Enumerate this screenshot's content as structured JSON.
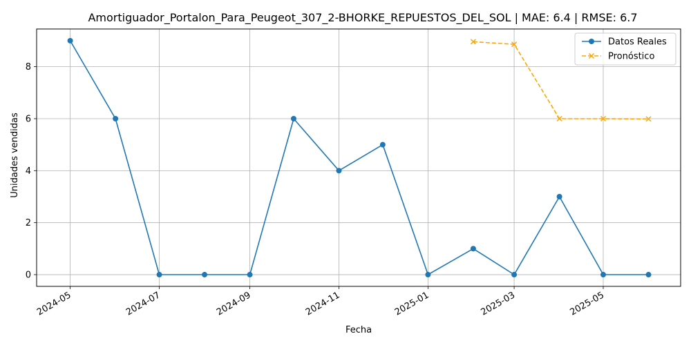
{
  "chart_data": {
    "type": "line",
    "title": "Amortiguador_Portalon_Para_Peugeot_307_2-BHORKE_REPUESTOS_DEL_SOL | MAE: 6.4 | RMSE: 6.7",
    "xlabel": "Fecha",
    "ylabel": "Unidades vendidas",
    "x_ticks": [
      "2024-05",
      "2024-07",
      "2024-09",
      "2024-11",
      "2025-01",
      "2025-03",
      "2025-05"
    ],
    "y_ticks": [
      0,
      2,
      4,
      6,
      8
    ],
    "ylim": [
      -0.45,
      9.45
    ],
    "xlim": [
      "2024-04-08",
      "2025-06-23"
    ],
    "grid": true,
    "legend_position": "top-right",
    "series": [
      {
        "name": "Datos Reales",
        "color": "#1f77b4",
        "marker": "circle",
        "linestyle": "solid",
        "points": [
          {
            "x": "2024-05-01",
            "y": 9
          },
          {
            "x": "2024-06-01",
            "y": 6
          },
          {
            "x": "2024-07-01",
            "y": 0
          },
          {
            "x": "2024-08-01",
            "y": 0
          },
          {
            "x": "2024-09-01",
            "y": 0
          },
          {
            "x": "2024-10-01",
            "y": 6
          },
          {
            "x": "2024-11-01",
            "y": 4
          },
          {
            "x": "2024-12-01",
            "y": 5
          },
          {
            "x": "2025-01-01",
            "y": 0
          },
          {
            "x": "2025-02-01",
            "y": 1
          },
          {
            "x": "2025-03-01",
            "y": 0
          },
          {
            "x": "2025-04-01",
            "y": 3
          },
          {
            "x": "2025-05-01",
            "y": 0
          },
          {
            "x": "2025-06-01",
            "y": 0
          }
        ]
      },
      {
        "name": "Pronóstico",
        "color": "#ffa500",
        "marker": "x",
        "linestyle": "dashed",
        "points": [
          {
            "x": "2025-02-01",
            "y": 8.96
          },
          {
            "x": "2025-03-01",
            "y": 8.86
          },
          {
            "x": "2025-04-01",
            "y": 6.0
          },
          {
            "x": "2025-05-01",
            "y": 6.0
          },
          {
            "x": "2025-06-01",
            "y": 5.99
          }
        ]
      }
    ]
  }
}
